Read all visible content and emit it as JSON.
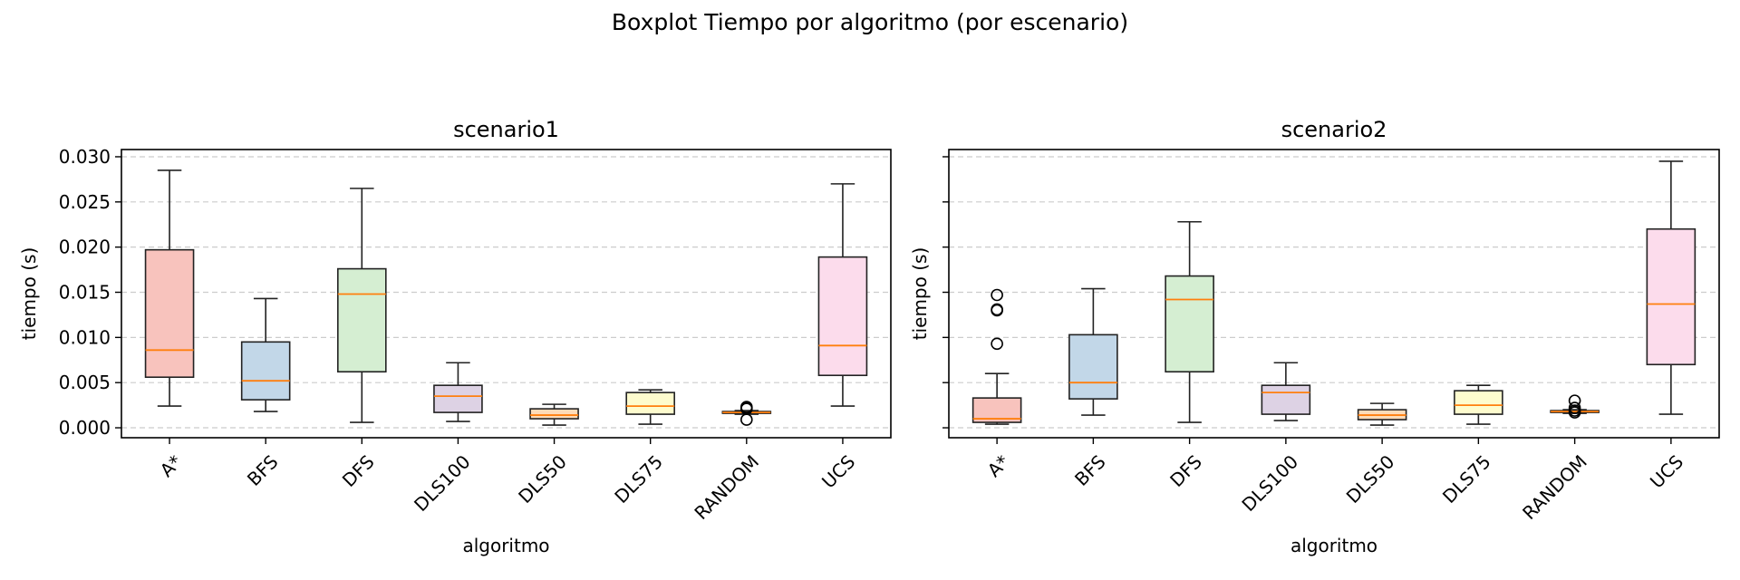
{
  "figure": {
    "title": "Boxplot Tiempo por algoritmo (por escenario)"
  },
  "chart_data": [
    {
      "type": "boxplot",
      "title": "scenario1",
      "xlabel": "algoritmo",
      "ylabel": "tiempo (s)",
      "ylim": [
        -0.0011,
        0.0308
      ],
      "yticks": [
        0.0,
        0.005,
        0.01,
        0.015,
        0.02,
        0.025,
        0.03
      ],
      "ytick_labels": [
        "0.000",
        "0.005",
        "0.010",
        "0.015",
        "0.020",
        "0.025",
        "0.030"
      ],
      "grid": "y-dashed",
      "categories": [
        "A*",
        "BFS",
        "DFS",
        "DLS100",
        "DLS50",
        "DLS75",
        "RANDOM",
        "UCS"
      ],
      "boxes": [
        {
          "whislo": 0.0024,
          "q1": 0.0056,
          "med": 0.0086,
          "q3": 0.0197,
          "whishi": 0.0285,
          "fliers": []
        },
        {
          "whislo": 0.0018,
          "q1": 0.0031,
          "med": 0.0052,
          "q3": 0.0095,
          "whishi": 0.0143,
          "fliers": []
        },
        {
          "whislo": 0.0006,
          "q1": 0.0062,
          "med": 0.0148,
          "q3": 0.0176,
          "whishi": 0.0265,
          "fliers": []
        },
        {
          "whislo": 0.0007,
          "q1": 0.0017,
          "med": 0.0035,
          "q3": 0.0047,
          "whishi": 0.0072,
          "fliers": []
        },
        {
          "whislo": 0.0003,
          "q1": 0.001,
          "med": 0.0014,
          "q3": 0.0021,
          "whishi": 0.0026,
          "fliers": []
        },
        {
          "whislo": 0.0004,
          "q1": 0.0015,
          "med": 0.0024,
          "q3": 0.0039,
          "whishi": 0.0042,
          "fliers": []
        },
        {
          "whislo": 0.0015,
          "q1": 0.0016,
          "med": 0.0017,
          "q3": 0.0018,
          "whishi": 0.0019,
          "fliers": [
            0.0009,
            0.0021,
            0.0022,
            0.0023
          ]
        },
        {
          "whislo": 0.0024,
          "q1": 0.0058,
          "med": 0.0091,
          "q3": 0.0189,
          "whishi": 0.027,
          "fliers": []
        }
      ]
    },
    {
      "type": "boxplot",
      "title": "scenario2",
      "xlabel": "algoritmo",
      "ylabel": "tiempo (s)",
      "ylim": [
        -0.0011,
        0.0308
      ],
      "yticks": [
        0.0,
        0.005,
        0.01,
        0.015,
        0.02,
        0.025,
        0.03
      ],
      "ytick_labels": [],
      "grid": "y-dashed",
      "categories": [
        "A*",
        "BFS",
        "DFS",
        "DLS100",
        "DLS50",
        "DLS75",
        "RANDOM",
        "UCS"
      ],
      "boxes": [
        {
          "whislo": 0.0004,
          "q1": 0.0006,
          "med": 0.001,
          "q3": 0.0033,
          "whishi": 0.006,
          "fliers": [
            0.0093,
            0.013,
            0.0131,
            0.0147
          ]
        },
        {
          "whislo": 0.0014,
          "q1": 0.0032,
          "med": 0.005,
          "q3": 0.0103,
          "whishi": 0.0154,
          "fliers": []
        },
        {
          "whislo": 0.0006,
          "q1": 0.0062,
          "med": 0.0142,
          "q3": 0.0168,
          "whishi": 0.0228,
          "fliers": []
        },
        {
          "whislo": 0.0008,
          "q1": 0.0015,
          "med": 0.0039,
          "q3": 0.0047,
          "whishi": 0.0072,
          "fliers": []
        },
        {
          "whislo": 0.0003,
          "q1": 0.0009,
          "med": 0.0014,
          "q3": 0.002,
          "whishi": 0.0027,
          "fliers": []
        },
        {
          "whislo": 0.0004,
          "q1": 0.0015,
          "med": 0.0025,
          "q3": 0.0041,
          "whishi": 0.0047,
          "fliers": []
        },
        {
          "whislo": 0.0016,
          "q1": 0.0017,
          "med": 0.0018,
          "q3": 0.0019,
          "whishi": 0.002,
          "fliers": [
            0.0017,
            0.0019,
            0.0022,
            0.003
          ]
        },
        {
          "whislo": 0.0015,
          "q1": 0.007,
          "med": 0.0137,
          "q3": 0.022,
          "whishi": 0.0295,
          "fliers": []
        }
      ]
    }
  ],
  "colors": {
    "box_fills": [
      "#f8c3bd",
      "#c2d7e8",
      "#d5eed2",
      "#ddd2e4",
      "#fedbb8",
      "#fefcce",
      "#e9d7c3",
      "#fcdcec"
    ],
    "median": "#ff7f0e",
    "edge": "#222222",
    "grid": "#cccccc"
  }
}
